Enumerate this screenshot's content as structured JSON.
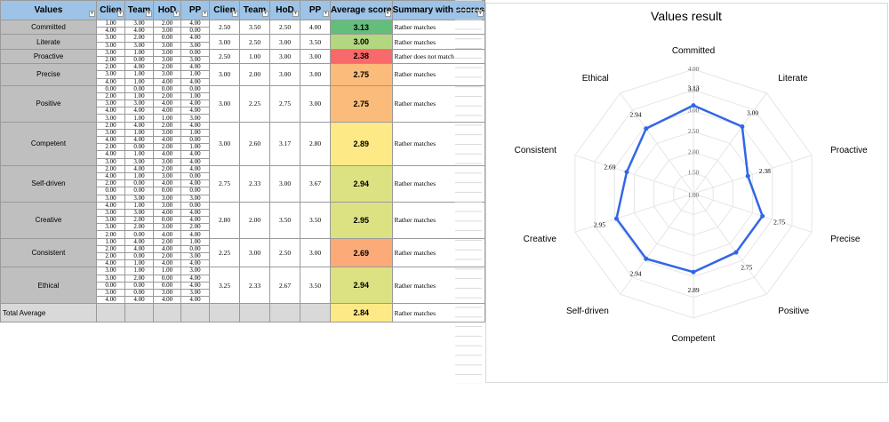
{
  "table": {
    "headers": [
      "Values",
      "Clien",
      "Team",
      "HoD",
      "PP",
      "Clien",
      "Team",
      "HoD",
      "PP",
      "Average score",
      "Summary with scores"
    ],
    "rows": [
      {
        "name": "Committed",
        "sub": [
          [
            "1.00",
            "3.00",
            "2.00",
            "4.00"
          ],
          [
            "4.00",
            "4.00",
            "3.00",
            "0.00"
          ]
        ],
        "grp": [
          "2.50",
          "3.50",
          "2.50",
          "4.00"
        ],
        "avg": "3.13",
        "color": "#63be7b",
        "summary": "Rather matches"
      },
      {
        "name": "Literate",
        "sub": [
          [
            "3.00",
            "2.00",
            "0.00",
            "4.00"
          ],
          [
            "3.00",
            "3.00",
            "3.00",
            "3.00"
          ]
        ],
        "grp": [
          "3.00",
          "2.50",
          "3.00",
          "3.50"
        ],
        "avg": "3.00",
        "color": "#b3d77f",
        "summary": "Rather matches"
      },
      {
        "name": "Proactive",
        "sub": [
          [
            "3.00",
            "1.00",
            "3.00",
            "0.00"
          ],
          [
            "2.00",
            "0.00",
            "3.00",
            "3.00"
          ]
        ],
        "grp": [
          "2.50",
          "1.00",
          "3.00",
          "3.00"
        ],
        "avg": "2.38",
        "color": "#f8696b",
        "summary": "Rather does not match"
      },
      {
        "name": "Precise",
        "sub": [
          [
            "2.00",
            "4.00",
            "2.00",
            "4.00"
          ],
          [
            "3.00",
            "1.00",
            "3.00",
            "1.00"
          ],
          [
            "4.00",
            "1.00",
            "4.00",
            "4.00"
          ]
        ],
        "grp": [
          "3.00",
          "2.00",
          "3.00",
          "3.00"
        ],
        "avg": "2.75",
        "color": "#fbbc7b",
        "summary": "Rather matches"
      },
      {
        "name": "Positive",
        "sub": [
          [
            "0.00",
            "0.00",
            "0.00",
            "0.00"
          ],
          [
            "2.00",
            "1.00",
            "2.00",
            "1.00"
          ],
          [
            "3.00",
            "3.00",
            "4.00",
            "4.00"
          ],
          [
            "4.00",
            "4.00",
            "4.00",
            "4.00"
          ],
          [
            "3.00",
            "1.00",
            "1.00",
            "3.00"
          ]
        ],
        "grp": [
          "3.00",
          "2.25",
          "2.75",
          "3.00"
        ],
        "avg": "2.75",
        "color": "#fbbc7b",
        "summary": "Rather matches"
      },
      {
        "name": "Competent",
        "sub": [
          [
            "2.00",
            "4.00",
            "2.00",
            "4.00"
          ],
          [
            "3.00",
            "1.00",
            "3.00",
            "1.00"
          ],
          [
            "4.00",
            "4.00",
            "4.00",
            "0.00"
          ],
          [
            "2.00",
            "0.00",
            "2.00",
            "1.00"
          ],
          [
            "4.00",
            "1.00",
            "4.00",
            "4.00"
          ],
          [
            "3.00",
            "3.00",
            "3.00",
            "4.00"
          ]
        ],
        "grp": [
          "3.00",
          "2.60",
          "3.17",
          "2.80"
        ],
        "avg": "2.89",
        "color": "#fde985",
        "summary": "Rather matches"
      },
      {
        "name": "Self-driven",
        "sub": [
          [
            "2.00",
            "4.00",
            "2.00",
            "4.00"
          ],
          [
            "4.00",
            "1.00",
            "3.00",
            "0.00"
          ],
          [
            "2.00",
            "0.00",
            "4.00",
            "4.00"
          ],
          [
            "0.00",
            "0.00",
            "0.00",
            "0.00"
          ],
          [
            "3.00",
            "3.00",
            "3.00",
            "3.00"
          ]
        ],
        "grp": [
          "2.75",
          "2.33",
          "3.00",
          "3.67"
        ],
        "avg": "2.94",
        "color": "#dce282",
        "summary": "Rather matches"
      },
      {
        "name": "Creative",
        "sub": [
          [
            "4.00",
            "1.00",
            "3.00",
            "0.00"
          ],
          [
            "3.00",
            "3.00",
            "4.00",
            "4.00"
          ],
          [
            "3.00",
            "2.00",
            "0.00",
            "4.00"
          ],
          [
            "3.00",
            "2.00",
            "3.00",
            "2.00"
          ],
          [
            "2.00",
            "0.00",
            "4.00",
            "4.00"
          ]
        ],
        "grp": [
          "2.80",
          "2.00",
          "3.50",
          "3.50"
        ],
        "avg": "2.95",
        "color": "#dce282",
        "summary": "Rather matches"
      },
      {
        "name": "Consistent",
        "sub": [
          [
            "1.00",
            "4.00",
            "2.00",
            "1.00"
          ],
          [
            "2.00",
            "4.00",
            "4.00",
            "0.00"
          ],
          [
            "2.00",
            "0.00",
            "2.00",
            "3.00"
          ],
          [
            "4.00",
            "1.00",
            "4.00",
            "4.00"
          ]
        ],
        "grp": [
          "2.25",
          "3.00",
          "2.50",
          "3.00"
        ],
        "avg": "2.69",
        "color": "#fcaa78",
        "summary": "Rather matches"
      },
      {
        "name": "Ethical",
        "sub": [
          [
            "3.00",
            "1.00",
            "1.00",
            "3.00"
          ],
          [
            "3.00",
            "2.00",
            "0.00",
            "4.00"
          ],
          [
            "0.00",
            "0.00",
            "0.00",
            "4.00"
          ],
          [
            "3.00",
            "0.00",
            "3.00",
            "3.00"
          ],
          [
            "4.00",
            "4.00",
            "4.00",
            "4.00"
          ]
        ],
        "grp": [
          "3.25",
          "2.33",
          "2.67",
          "3.50"
        ],
        "avg": "2.94",
        "color": "#dce282",
        "summary": "Rather matches"
      }
    ],
    "total": {
      "label": "Total Average",
      "avg": "2.84",
      "color": "#fde985",
      "summary": "Rather matches"
    }
  },
  "chart_data": {
    "type": "radar",
    "title": "Values result",
    "categories": [
      "Committed",
      "Literate",
      "Proactive",
      "Precise",
      "Positive",
      "Competent",
      "Self-driven",
      "Creative",
      "Consistent",
      "Ethical"
    ],
    "values": [
      3.13,
      3.0,
      2.38,
      2.75,
      2.75,
      2.89,
      2.94,
      2.95,
      2.69,
      2.94
    ],
    "data_labels": [
      "3.13",
      "3.00",
      "2.38",
      "2.75",
      "2.75",
      "2.89",
      "2.94",
      "2.95",
      "2.69",
      "2.94"
    ],
    "rlim": [
      1.0,
      4.0
    ],
    "ticks": [
      "1.00",
      "1.50",
      "2.00",
      "2.50",
      "3.00",
      "3.50",
      "4.00"
    ],
    "series_color": "#3366e6",
    "grid": true,
    "legend": false
  }
}
